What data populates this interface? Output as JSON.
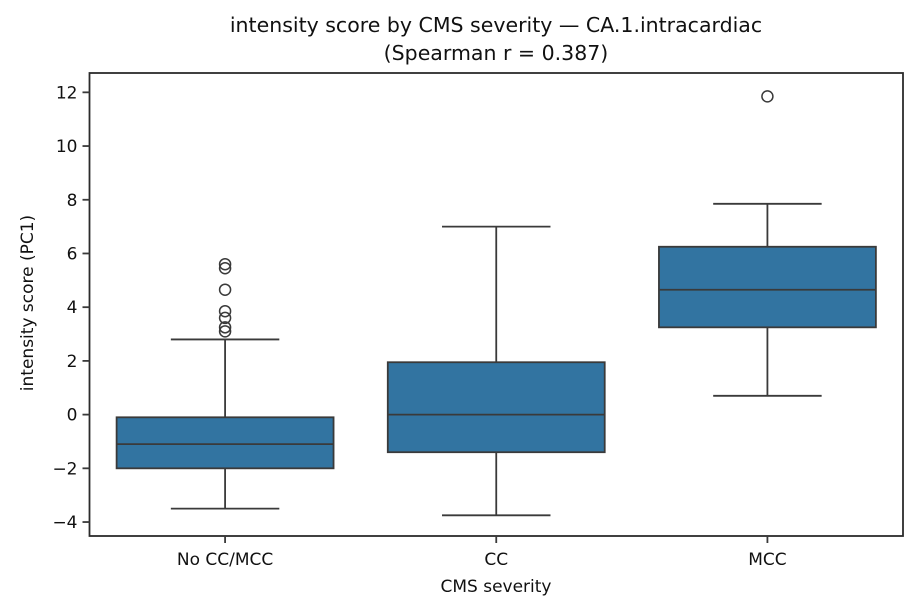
{
  "chart_data": {
    "type": "boxplot",
    "title": "intensity score by CMS severity — CA.1.intracardiac",
    "subtitle": "(Spearman r = 0.387)",
    "xlabel": "CMS severity",
    "ylabel": "intensity score (PC1)",
    "categories": [
      "No CC/MCC",
      "CC",
      "MCC"
    ],
    "ylim": [
      -4.52,
      12.72
    ],
    "yticks": [
      -4,
      -2,
      0,
      2,
      4,
      6,
      8,
      10,
      12
    ],
    "grid": false,
    "legend": null,
    "boxes": [
      {
        "category": "No CC/MCC",
        "whisker_low": -3.5,
        "q1": -2.0,
        "median": -1.1,
        "q3": -0.1,
        "whisker_high": 2.8,
        "outliers": [
          3.1,
          3.25,
          3.6,
          3.85,
          4.65,
          5.45,
          5.6
        ]
      },
      {
        "category": "CC",
        "whisker_low": -3.75,
        "q1": -1.4,
        "median": 0.0,
        "q3": 1.95,
        "whisker_high": 7.0,
        "outliers": []
      },
      {
        "category": "MCC",
        "whisker_low": 0.7,
        "q1": 3.25,
        "median": 4.65,
        "q3": 6.25,
        "whisker_high": 7.85,
        "outliers": [
          11.85
        ]
      }
    ],
    "colors": {
      "box_fill": "#3274a1",
      "box_edge": "#3a3a3a",
      "spine": "#2b2b2b",
      "text": "#111111",
      "background": "#ffffff"
    }
  }
}
